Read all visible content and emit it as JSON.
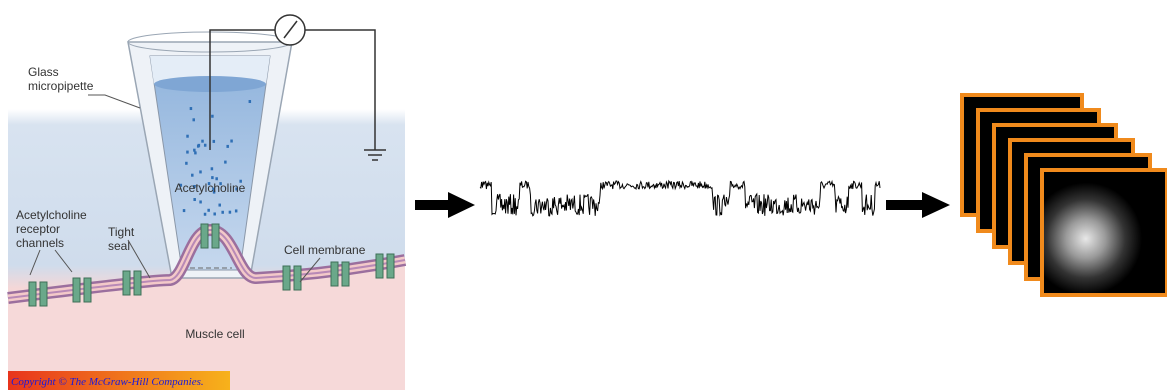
{
  "labels": {
    "glass_micropipette": [
      "Glass",
      "micropipette"
    ],
    "acetylcholine": "Acetylcholine",
    "receptor_channels": [
      "Acetylcholine",
      "receptor",
      "channels"
    ],
    "tight_seal": [
      "Tight",
      "seal"
    ],
    "cell_membrane": "Cell membrane",
    "muscle_cell": "Muscle cell",
    "copyright": "Copyright © The McGraw-Hill Companies."
  }
}
